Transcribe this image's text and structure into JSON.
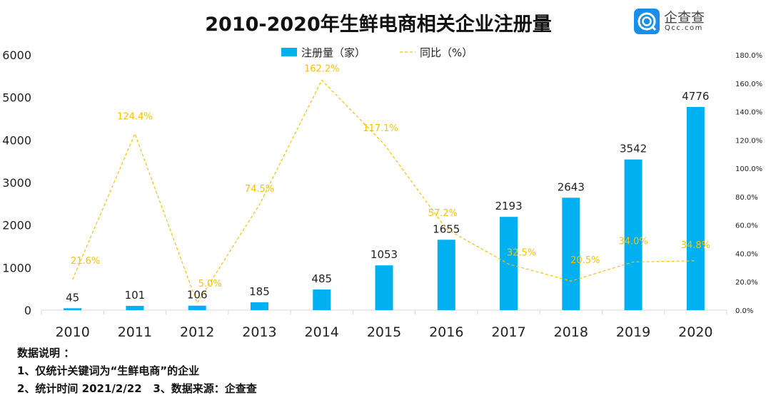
{
  "title": "2010-2020年生鲜电商相关企业注册量",
  "logo": {
    "cn": "企查查",
    "en": "Qcc.com"
  },
  "notes": [
    "数据说明 ：",
    "1、仅统计关键词为“生鲜电商”的企业",
    "2、统计时间 2021/2/22   3、数据来源：企查查"
  ],
  "chart_data": {
    "type": "bar+line",
    "title": "2010-2020年生鲜电商相关企业注册量",
    "categories": [
      "2010",
      "2011",
      "2012",
      "2013",
      "2014",
      "2015",
      "2016",
      "2017",
      "2018",
      "2019",
      "2020"
    ],
    "series": [
      {
        "name": "注册量（家）",
        "type": "bar",
        "axis": "left",
        "color": "#00b0f0",
        "values": [
          45,
          101,
          106,
          185,
          485,
          1053,
          1655,
          2193,
          2643,
          3542,
          4776
        ],
        "labels": [
          "45",
          "101",
          "106",
          "185",
          "485",
          "1053",
          "1655",
          "2193",
          "2643",
          "3542",
          "4776"
        ]
      },
      {
        "name": "同比（%）",
        "type": "line",
        "axis": "right",
        "style": "dashed",
        "color": "#ffc000",
        "values": [
          21.6,
          124.4,
          5.0,
          74.5,
          162.2,
          117.1,
          57.2,
          32.5,
          20.5,
          34.0,
          34.8
        ],
        "labels": [
          "21.6%",
          "124.4%",
          "5.0%",
          "74.5%",
          "162.2%",
          "117.1%",
          "57.2%",
          "32.5%",
          "20.5%",
          "34.0%",
          "34.8%"
        ]
      }
    ],
    "left_axis": {
      "ylim": [
        0,
        6000
      ],
      "ticks": [
        "0",
        "1000",
        "2000",
        "3000",
        "4000",
        "5000",
        "6000"
      ]
    },
    "right_axis": {
      "ylim": [
        0,
        180
      ],
      "ticks": [
        "0.0%",
        "20.0%",
        "40.0%",
        "60.0%",
        "80.0%",
        "100.0%",
        "120.0%",
        "140.0%",
        "160.0%",
        "180.0%"
      ]
    },
    "legend": "top-center",
    "grid": false
  }
}
